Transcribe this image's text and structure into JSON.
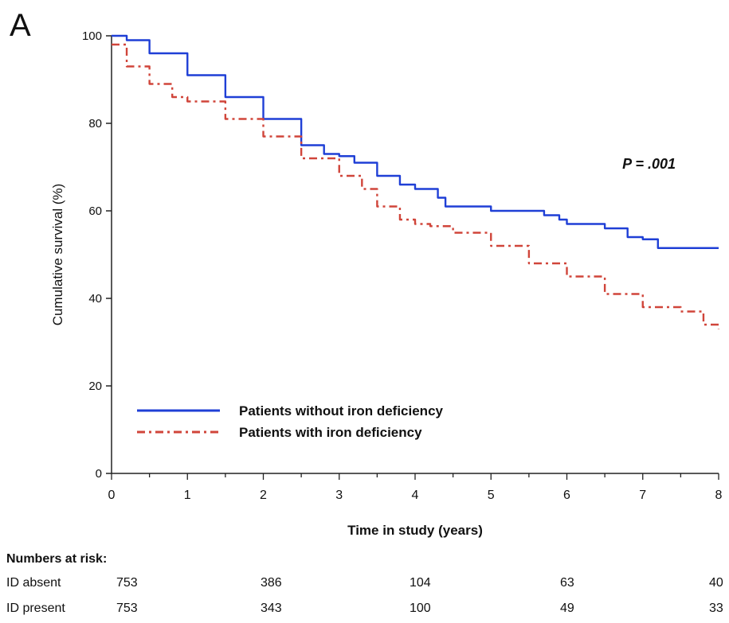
{
  "panel_label": "A",
  "chart_data": {
    "type": "line",
    "xlabel": "Time in study (years)",
    "ylabel": "Cumulative survival (%)",
    "xlim": [
      0,
      8
    ],
    "ylim": [
      0,
      100
    ],
    "xticks": [
      0,
      1,
      2,
      3,
      4,
      5,
      6,
      7,
      8
    ],
    "yticks": [
      0,
      20,
      40,
      60,
      80,
      100
    ],
    "grid": false,
    "legend_position": "bottom-left",
    "annotation": "P = .001",
    "series": [
      {
        "name": "Patients without iron deficiency",
        "color": "#1f3fd6",
        "style": "solid",
        "x": [
          0,
          0.2,
          0.5,
          1.0,
          1.5,
          2.0,
          2.5,
          2.8,
          3.0,
          3.2,
          3.5,
          3.8,
          4.0,
          4.2,
          4.3,
          4.4,
          4.5,
          5.0,
          5.5,
          5.7,
          5.9,
          6.0,
          6.2,
          6.5,
          6.8,
          7.0,
          7.2,
          8.0
        ],
        "y": [
          100,
          99,
          96,
          91,
          86,
          81,
          75,
          73,
          72.5,
          71,
          68,
          66,
          65,
          65,
          63,
          61,
          61,
          60,
          60,
          59,
          58,
          57,
          57,
          56,
          54,
          53.5,
          51.5,
          51.5
        ]
      },
      {
        "name": "Patients with iron deficiency",
        "color": "#d0453a",
        "style": "dashdot",
        "x": [
          0,
          0.2,
          0.5,
          0.8,
          1.0,
          1.5,
          2.0,
          2.5,
          3.0,
          3.3,
          3.5,
          3.8,
          4.0,
          4.2,
          4.5,
          5.0,
          5.5,
          6.0,
          6.5,
          7.0,
          7.5,
          7.8,
          8.0
        ],
        "y": [
          98,
          93,
          89,
          86,
          85,
          81,
          77,
          72,
          68,
          65,
          61,
          58,
          57,
          56.5,
          55,
          52,
          48,
          45,
          41,
          38,
          37,
          34,
          33
        ]
      }
    ]
  },
  "risk_table": {
    "title": "Numbers at risk:",
    "rows": [
      {
        "label": "ID absent",
        "values": [
          "753",
          "386",
          "104",
          "63",
          "40"
        ]
      },
      {
        "label": "ID present",
        "values": [
          "753",
          "343",
          "100",
          "49",
          "33"
        ]
      }
    ]
  }
}
